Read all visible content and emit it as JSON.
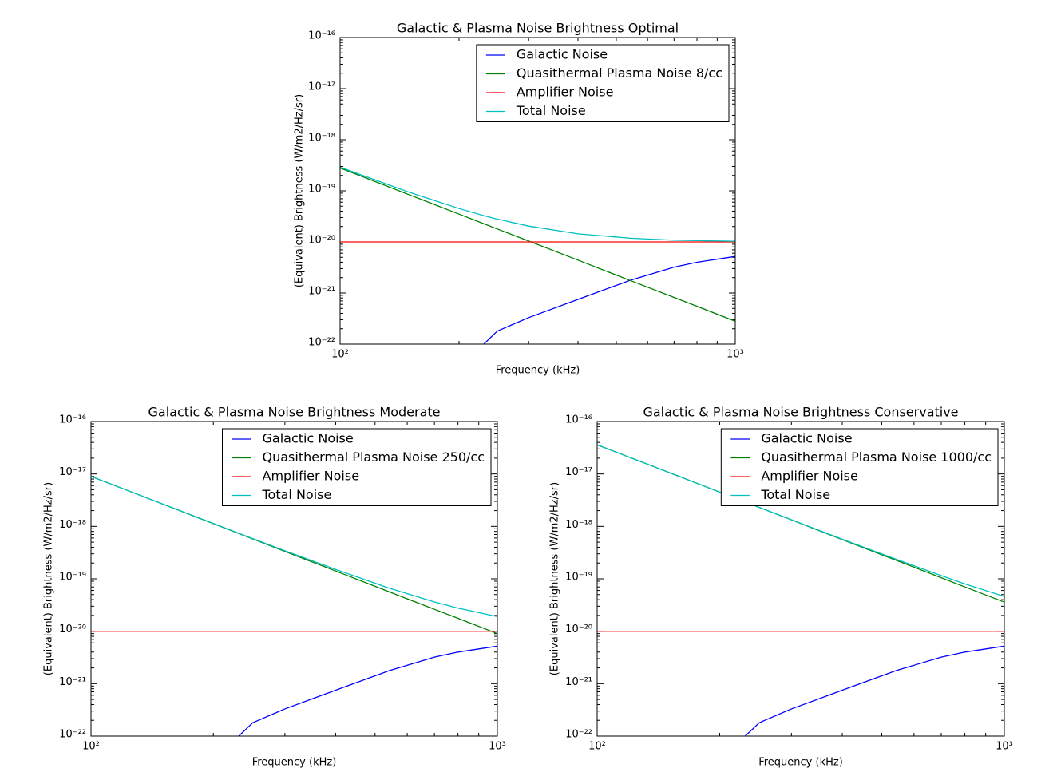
{
  "chart_data": [
    {
      "type": "line",
      "title": "Galactic & Plasma Noise Brightness Optimal",
      "xlabel": "Frequency (kHz)",
      "ylabel": "(Equivalent) Brightness (W/m2/Hz/sr)",
      "xscale": "log",
      "yscale": "log",
      "grid": false,
      "legend": "upper right",
      "xlim": [
        100,
        1000
      ],
      "ylim": [
        1e-22,
        1e-16
      ],
      "xticks": [
        {
          "value": 100,
          "label": "10²"
        },
        {
          "value": 1000,
          "label": "10³"
        }
      ],
      "yticks": [
        {
          "value": 1e-22,
          "label": "10⁻²²"
        },
        {
          "value": 1e-21,
          "label": "10⁻²¹"
        },
        {
          "value": 1e-20,
          "label": "10⁻²⁰"
        },
        {
          "value": 1e-19,
          "label": "10⁻¹⁹"
        },
        {
          "value": 1e-18,
          "label": "10⁻¹⁸"
        },
        {
          "value": 1e-17,
          "label": "10⁻¹⁷"
        },
        {
          "value": 1e-16,
          "label": "10⁻¹⁶"
        }
      ],
      "x": [
        100,
        150,
        200,
        231,
        250,
        300,
        400,
        543,
        700,
        800,
        1000
      ],
      "series": [
        {
          "name": "Galactic Noise",
          "color": "#0000ff",
          "values": [
            null,
            null,
            null,
            1e-22,
            1.8e-22,
            3.3e-22,
            7.5e-22,
            1.78e-21,
            3.2e-21,
            4e-21,
            5.2e-21
          ]
        },
        {
          "name": "Quasithermal Plasma Noise 8/cc",
          "color": "#008000",
          "values": [
            2.8e-19,
            8.3e-20,
            3.5e-20,
            2.27e-20,
            1.79e-20,
            1.04e-20,
            4.4e-21,
            1.75e-21,
            8.2e-22,
            5.5e-22,
            2.8e-22
          ]
        },
        {
          "name": "Amplifier Noise",
          "color": "#ff0000",
          "values": [
            1e-20,
            1e-20,
            1e-20,
            1e-20,
            1e-20,
            1e-20,
            1e-20,
            1e-20,
            1e-20,
            1e-20,
            1e-20
          ]
        },
        {
          "name": "Total Noise",
          "color": "#00bfbf",
          "values": [
            2.9e-19,
            9.3e-20,
            4.5e-20,
            3.27e-20,
            2.79e-20,
            2.04e-20,
            1.44e-20,
            1.18e-20,
            1.08e-20,
            1.06e-20,
            1.03e-20
          ]
        }
      ]
    },
    {
      "type": "line",
      "title": "Galactic & Plasma Noise Brightness Moderate",
      "xlabel": "Frequency (kHz)",
      "ylabel": "(Equivalent) Brightness (W/m2/Hz/sr)",
      "xscale": "log",
      "yscale": "log",
      "grid": false,
      "legend": "upper right",
      "xlim": [
        100,
        1000
      ],
      "ylim": [
        1e-22,
        1e-16
      ],
      "xticks": [
        {
          "value": 100,
          "label": "10²"
        },
        {
          "value": 1000,
          "label": "10³"
        }
      ],
      "yticks": [
        {
          "value": 1e-22,
          "label": "10⁻²²"
        },
        {
          "value": 1e-21,
          "label": "10⁻²¹"
        },
        {
          "value": 1e-20,
          "label": "10⁻²⁰"
        },
        {
          "value": 1e-19,
          "label": "10⁻¹⁹"
        },
        {
          "value": 1e-18,
          "label": "10⁻¹⁸"
        },
        {
          "value": 1e-17,
          "label": "10⁻¹⁷"
        },
        {
          "value": 1e-16,
          "label": "10⁻¹⁶"
        }
      ],
      "x": [
        100,
        150,
        200,
        231,
        250,
        300,
        400,
        543,
        700,
        800,
        1000
      ],
      "series": [
        {
          "name": "Galactic Noise",
          "color": "#0000ff",
          "values": [
            null,
            null,
            null,
            1e-22,
            1.8e-22,
            3.3e-22,
            7.5e-22,
            1.78e-21,
            3.2e-21,
            4e-21,
            5.2e-21
          ]
        },
        {
          "name": "Quasithermal Plasma Noise 250/cc",
          "color": "#008000",
          "values": [
            9e-18,
            2.67e-18,
            1.13e-18,
            7.3e-19,
            5.76e-19,
            3.33e-19,
            1.41e-19,
            5.6e-20,
            2.62e-20,
            1.76e-20,
            9e-21
          ]
        },
        {
          "name": "Amplifier Noise",
          "color": "#ff0000",
          "values": [
            1e-20,
            1e-20,
            1e-20,
            1e-20,
            1e-20,
            1e-20,
            1e-20,
            1e-20,
            1e-20,
            1e-20,
            1e-20
          ]
        },
        {
          "name": "Total Noise",
          "color": "#00bfbf",
          "values": [
            9.01e-18,
            2.68e-18,
            1.14e-18,
            7.4e-19,
            5.86e-19,
            3.43e-19,
            1.51e-19,
            6.6e-20,
            3.62e-20,
            2.76e-20,
            1.9e-20
          ]
        }
      ]
    },
    {
      "type": "line",
      "title": "Galactic & Plasma Noise Brightness Conservative",
      "xlabel": "Frequency (kHz)",
      "ylabel": "(Equivalent) Brightness (W/m2/Hz/sr)",
      "xscale": "log",
      "yscale": "log",
      "grid": false,
      "legend": "upper right",
      "xlim": [
        100,
        1000
      ],
      "ylim": [
        1e-22,
        1e-16
      ],
      "xticks": [
        {
          "value": 100,
          "label": "10²"
        },
        {
          "value": 1000,
          "label": "10³"
        }
      ],
      "yticks": [
        {
          "value": 1e-22,
          "label": "10⁻²²"
        },
        {
          "value": 1e-21,
          "label": "10⁻²¹"
        },
        {
          "value": 1e-20,
          "label": "10⁻²⁰"
        },
        {
          "value": 1e-19,
          "label": "10⁻¹⁹"
        },
        {
          "value": 1e-18,
          "label": "10⁻¹⁸"
        },
        {
          "value": 1e-17,
          "label": "10⁻¹⁷"
        },
        {
          "value": 1e-16,
          "label": "10⁻¹⁶"
        }
      ],
      "x": [
        100,
        150,
        200,
        231,
        250,
        300,
        400,
        543,
        700,
        800,
        1000
      ],
      "series": [
        {
          "name": "Galactic Noise",
          "color": "#0000ff",
          "values": [
            null,
            null,
            null,
            1e-22,
            1.8e-22,
            3.3e-22,
            7.5e-22,
            1.78e-21,
            3.2e-21,
            4e-21,
            5.2e-21
          ]
        },
        {
          "name": "Quasithermal Plasma Noise 1000/cc",
          "color": "#008000",
          "values": [
            3.6e-17,
            1.07e-17,
            4.5e-18,
            2.92e-18,
            2.3e-18,
            1.33e-18,
            5.6e-19,
            2.25e-19,
            1.05e-19,
            7e-20,
            3.6e-20
          ]
        },
        {
          "name": "Amplifier Noise",
          "color": "#ff0000",
          "values": [
            1e-20,
            1e-20,
            1e-20,
            1e-20,
            1e-20,
            1e-20,
            1e-20,
            1e-20,
            1e-20,
            1e-20,
            1e-20
          ]
        },
        {
          "name": "Total Noise",
          "color": "#00bfbf",
          "values": [
            3.6e-17,
            1.07e-17,
            4.51e-18,
            2.93e-18,
            2.31e-18,
            1.34e-18,
            5.7e-19,
            2.35e-19,
            1.15e-19,
            8e-20,
            4.6e-20
          ]
        }
      ]
    }
  ]
}
